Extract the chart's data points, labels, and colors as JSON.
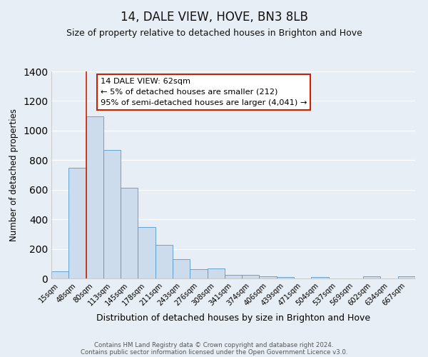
{
  "title": "14, DALE VIEW, HOVE, BN3 8LB",
  "subtitle": "Size of property relative to detached houses in Brighton and Hove",
  "xlabel": "Distribution of detached houses by size in Brighton and Hove",
  "ylabel": "Number of detached properties",
  "bar_labels": [
    "15sqm",
    "48sqm",
    "80sqm",
    "113sqm",
    "145sqm",
    "178sqm",
    "211sqm",
    "243sqm",
    "276sqm",
    "308sqm",
    "341sqm",
    "374sqm",
    "406sqm",
    "439sqm",
    "471sqm",
    "504sqm",
    "537sqm",
    "569sqm",
    "602sqm",
    "634sqm",
    "667sqm"
  ],
  "bar_values": [
    50,
    750,
    1095,
    870,
    615,
    348,
    228,
    130,
    62,
    70,
    25,
    22,
    15,
    10,
    0,
    12,
    0,
    0,
    13,
    0,
    13
  ],
  "bar_color": "#ccdcec",
  "bar_edge_color": "#5599cc",
  "ylim": [
    0,
    1400
  ],
  "yticks": [
    0,
    200,
    400,
    600,
    800,
    1000,
    1200,
    1400
  ],
  "vline_color": "#cc2200",
  "annotation_title": "14 DALE VIEW: 62sqm",
  "annotation_line1": "← 5% of detached houses are smaller (212)",
  "annotation_line2": "95% of semi-detached houses are larger (4,041) →",
  "annotation_box_color": "#ffffff",
  "annotation_box_edge": "#cc2200",
  "background_color": "#e8eef5",
  "footer_line1": "Contains HM Land Registry data © Crown copyright and database right 2024.",
  "footer_line2": "Contains public sector information licensed under the Open Government Licence v3.0.",
  "title_fontsize": 12,
  "subtitle_fontsize": 9,
  "xlabel_fontsize": 9,
  "ylabel_fontsize": 8.5
}
